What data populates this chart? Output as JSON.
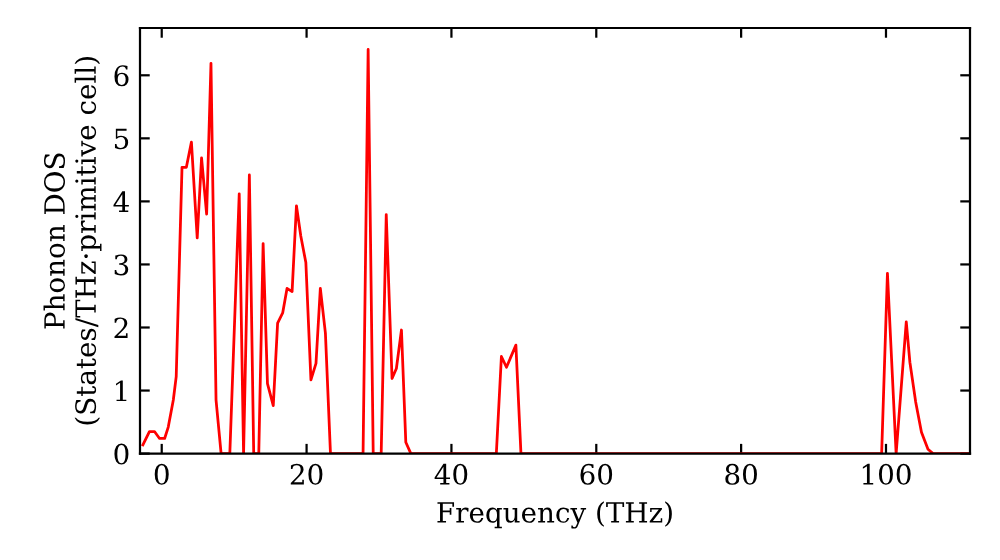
{
  "chart_data": {
    "type": "line",
    "xlabel": "Frequency (THz)",
    "ylabel": "Phonon DOS\n(States/THz·primitive cell)",
    "xlim": [
      -3,
      111.6
    ],
    "ylim": [
      0,
      6.75
    ],
    "xticks": [
      0,
      20,
      40,
      60,
      80,
      100
    ],
    "yticks": [
      0,
      1,
      2,
      3,
      4,
      5,
      6
    ],
    "grid": false,
    "legend": false,
    "marker": "none",
    "line_style": "solid",
    "series": [
      {
        "color": "#ff0000",
        "x": [
          -2.6,
          -1.7,
          -1.0,
          -0.3,
          0.4,
          0.9,
          1.6,
          2.0,
          2.8,
          3.4,
          4.1,
          4.9,
          5.5,
          6.2,
          6.8,
          7.5,
          8.2,
          9.4,
          10.7,
          11.3,
          12.1,
          12.7,
          13.4,
          14.0,
          14.6,
          15.4,
          16.0,
          16.7,
          17.3,
          18.0,
          18.6,
          19.2,
          19.9,
          20.6,
          21.3,
          21.9,
          22.6,
          23.3,
          27.8,
          28.5,
          29.2,
          30.3,
          31.0,
          31.8,
          32.4,
          33.1,
          33.7,
          34.4,
          46.2,
          46.9,
          47.6,
          48.9,
          49.6,
          99.4,
          100.2,
          101.4,
          102.8,
          103.3,
          104.1,
          104.9,
          105.8,
          106.5,
          111.6
        ],
        "values": [
          0.14,
          0.35,
          0.35,
          0.24,
          0.24,
          0.42,
          0.85,
          1.22,
          4.54,
          4.54,
          4.94,
          3.42,
          4.69,
          3.8,
          6.19,
          0.85,
          0,
          0,
          4.12,
          0,
          4.42,
          0,
          0,
          3.33,
          1.11,
          0.76,
          2.07,
          2.23,
          2.62,
          2.57,
          3.93,
          3.45,
          3.03,
          1.17,
          1.43,
          2.62,
          1.91,
          0,
          0,
          6.41,
          0,
          0,
          3.79,
          1.19,
          1.35,
          1.96,
          0.18,
          0,
          0,
          1.54,
          1.37,
          1.72,
          0,
          0,
          2.86,
          0,
          2.09,
          1.45,
          0.82,
          0.34,
          0.07,
          0,
          0
        ]
      }
    ]
  }
}
